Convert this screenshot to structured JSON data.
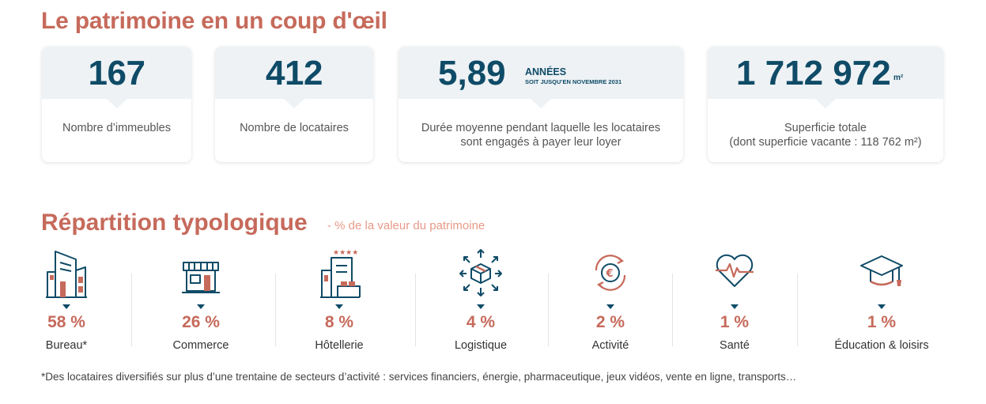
{
  "section1": {
    "title": "Le patrimoine en un coup d'œil",
    "cards": [
      {
        "value": "167",
        "label": "Nombre d’immeubles"
      },
      {
        "value": "412",
        "label": "Nombre de locataires"
      },
      {
        "value": "5,89",
        "unit": "ANNÉES",
        "unit_note": "SOIT JUSQU’EN NOVEMBRE 2031",
        "label_line1": "Durée moyenne pendant laquelle les locataires",
        "label_line2": "sont engagés à payer leur loyer"
      },
      {
        "value": "1 712 972",
        "unit": "m²",
        "label_line1": "Superficie totale",
        "label_line2": "(dont superficie vacante : 118 762 m²)"
      }
    ]
  },
  "section2": {
    "title": "Répartition typologique",
    "subtitle": "- % de la valeur du patrimoine",
    "categories": [
      {
        "icon": "office-buildings-icon",
        "percent": "58 %",
        "label": "Bureau*"
      },
      {
        "icon": "shop-storefront-icon",
        "percent": "26 %",
        "label": "Commerce"
      },
      {
        "icon": "hotel-icon",
        "percent": "8 %",
        "label": "Hôtellerie"
      },
      {
        "icon": "logistics-box-icon",
        "percent": "4 %",
        "label": "Logistique"
      },
      {
        "icon": "euro-cycle-icon",
        "percent": "2 %",
        "label": "Activité"
      },
      {
        "icon": "heart-pulse-icon",
        "percent": "1 %",
        "label": "Santé"
      },
      {
        "icon": "graduation-cap-icon",
        "percent": "1 %",
        "label": "Éducation & loisirs"
      }
    ],
    "footnote": "*Des locataires diversifiés sur plus d’une trentaine de secteurs d’activité : services financiers, énergie, pharmaceutique, jeux vidéos, vente en ligne, transports…"
  },
  "colors": {
    "accent": "#c66a5b",
    "accent_light": "#e79a88",
    "navy": "#0f4b67",
    "card_band": "#eef2f5"
  }
}
